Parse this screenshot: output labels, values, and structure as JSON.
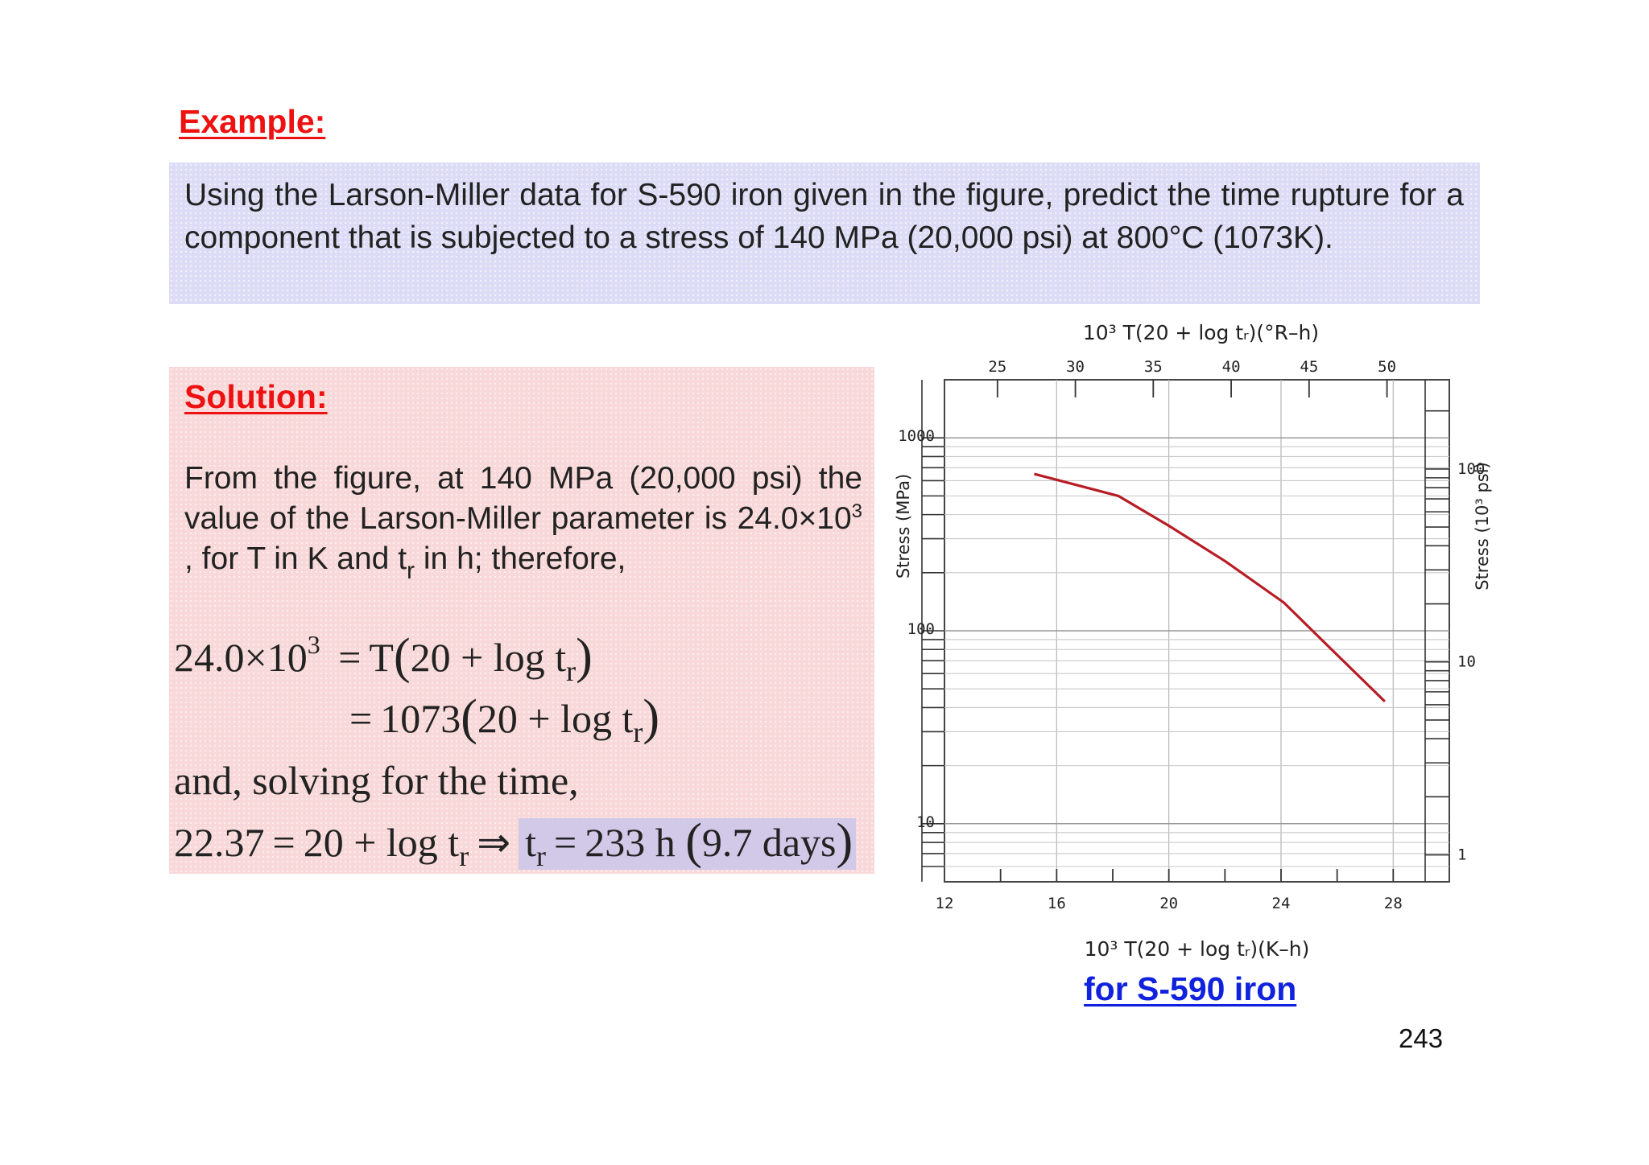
{
  "example": {
    "heading": "Example:",
    "problem": "Using the Larson-Miller data for S-590 iron given in the figure, predict the time rupture for a component that is subjected to a stress of 140 MPa (20,000 psi) at 800°C (1073K)."
  },
  "solution": {
    "heading": "Solution:",
    "text_1": "From the figure, at 140 MPa (20,000 psi) the value of the Larson-Miller parameter is 24.0×10",
    "text_exp": "3",
    "text_2": " , for T in K and t",
    "text_sub": "r",
    "text_3": " in h; therefore,",
    "eq1_lhs_base": "24.0×10",
    "eq1_lhs_exp": "3",
    "eq1_eq": "=",
    "eq1_T": "T",
    "eq_open": "(",
    "eq_body": "20 + log t",
    "eq_sub": "r",
    "eq_close": ")",
    "eq2_eq": "=",
    "eq2_val": "1073",
    "eq3_text": "and, solving for the time,",
    "eq4_lhs": "22.37",
    "eq4_eq": "=",
    "eq4_mid": "20 + log t",
    "eq4_sub": "r",
    "eq4_arrow": "⇒",
    "eq4_t": "t",
    "eq4_t_sub": "r",
    "eq4_eq2": "=",
    "eq4_val": "233 h",
    "eq4_open": "(",
    "eq4_days": "9.7 days",
    "eq4_close": ")"
  },
  "chart_data": {
    "type": "line",
    "top_axis_label": "10³ T(20 + log tᵣ)(°R–h)",
    "top_ticks": [
      "25",
      "30",
      "35",
      "40",
      "45",
      "50"
    ],
    "xlabel": "10³ T(20 + log tᵣ)(K–h)",
    "x_ticks": [
      "12",
      "16",
      "20",
      "24",
      "28"
    ],
    "xlim": [
      12,
      30
    ],
    "ylabel": "Stress (MPa)",
    "y_ticks": [
      "10",
      "100",
      "1000"
    ],
    "ylim": [
      5,
      2000
    ],
    "y_scale": "log",
    "right_label": "Stress (10³ psi)",
    "right_ticks": [
      "1",
      "10",
      "100"
    ],
    "series": [
      {
        "color": "#b81c24",
        "x": [
          15.2,
          18.2,
          20.0,
          22.0,
          24.1,
          26.0,
          27.7
        ],
        "y": [
          650,
          500,
          350,
          230,
          140,
          75,
          43
        ]
      }
    ]
  },
  "caption": "for S-590 iron",
  "page_number": "243"
}
